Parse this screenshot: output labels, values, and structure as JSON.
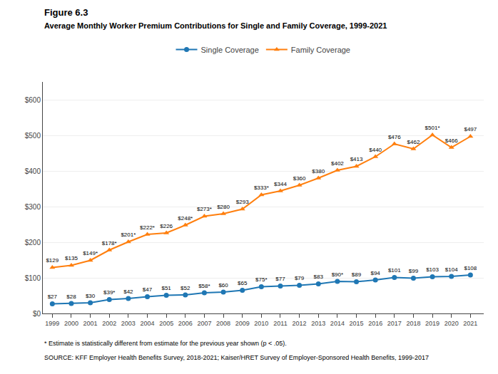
{
  "chart_data": {
    "type": "line",
    "title": "Figure 6.3",
    "subtitle": "Average Monthly Worker Premium Contributions for Single and Family Coverage, 1999-2021",
    "annotations": [
      "* Estimate is statistically different from estimate for the previous year shown (p < .05).",
      "SOURCE: KFF Employer Health Benefits Survey, 2018-2021; Kaiser/HRET Survey of Employer-Sponsored Health Benefits, 1999-2017"
    ],
    "x": [
      1999,
      2000,
      2001,
      2002,
      2003,
      2004,
      2005,
      2006,
      2007,
      2008,
      2009,
      2010,
      2011,
      2012,
      2013,
      2014,
      2015,
      2016,
      2017,
      2018,
      2019,
      2020,
      2021
    ],
    "xlim": [
      1998.5,
      2021.7
    ],
    "xticks": [
      1999,
      2000,
      2001,
      2002,
      2003,
      2004,
      2005,
      2006,
      2007,
      2008,
      2009,
      2010,
      2011,
      2012,
      2013,
      2014,
      2015,
      2016,
      2017,
      2018,
      2019,
      2020,
      2021
    ],
    "ylim": [
      0,
      650
    ],
    "yticks": [
      {
        "value": 0,
        "label": "$0"
      },
      {
        "value": 100,
        "label": "$100"
      },
      {
        "value": 200,
        "label": "$200"
      },
      {
        "value": 300,
        "label": "$300"
      },
      {
        "value": 400,
        "label": "$400"
      },
      {
        "value": 500,
        "label": "$500"
      },
      {
        "value": 600,
        "label": "$600"
      }
    ],
    "grid": true,
    "legend": "top",
    "data_labels": true,
    "series": [
      {
        "name": "Single Coverage",
        "marker": "circle",
        "values": [
          27,
          28,
          30,
          39,
          42,
          47,
          51,
          52,
          58,
          60,
          65,
          75,
          77,
          79,
          83,
          90,
          89,
          94,
          101,
          99,
          103,
          104,
          108
        ],
        "value_labels": [
          "$27",
          "$28",
          "$30",
          "$39*",
          "$42",
          "$47",
          "$51",
          "$52",
          "$58*",
          "$60",
          "$65",
          "$75*",
          "$77",
          "$79",
          "$83",
          "$90*",
          "$89",
          "$94",
          "$101",
          "$99",
          "$103",
          "$104",
          "$108"
        ]
      },
      {
        "name": "Family Coverage",
        "marker": "triangle-up",
        "values": [
          129,
          135,
          149,
          178,
          201,
          222,
          226,
          248,
          273,
          280,
          293,
          333,
          344,
          360,
          380,
          402,
          413,
          440,
          476,
          462,
          501,
          466,
          497
        ],
        "value_labels": [
          "$129",
          "$135",
          "$149*",
          "$178*",
          "$201*",
          "$222*",
          "$226",
          "$248*",
          "$273*",
          "$280",
          "$293",
          "$333*",
          "$344",
          "$360",
          "$380",
          "$402",
          "$413",
          "$440",
          "$476",
          "$462",
          "$501*",
          "$466",
          "$497"
        ]
      }
    ]
  }
}
